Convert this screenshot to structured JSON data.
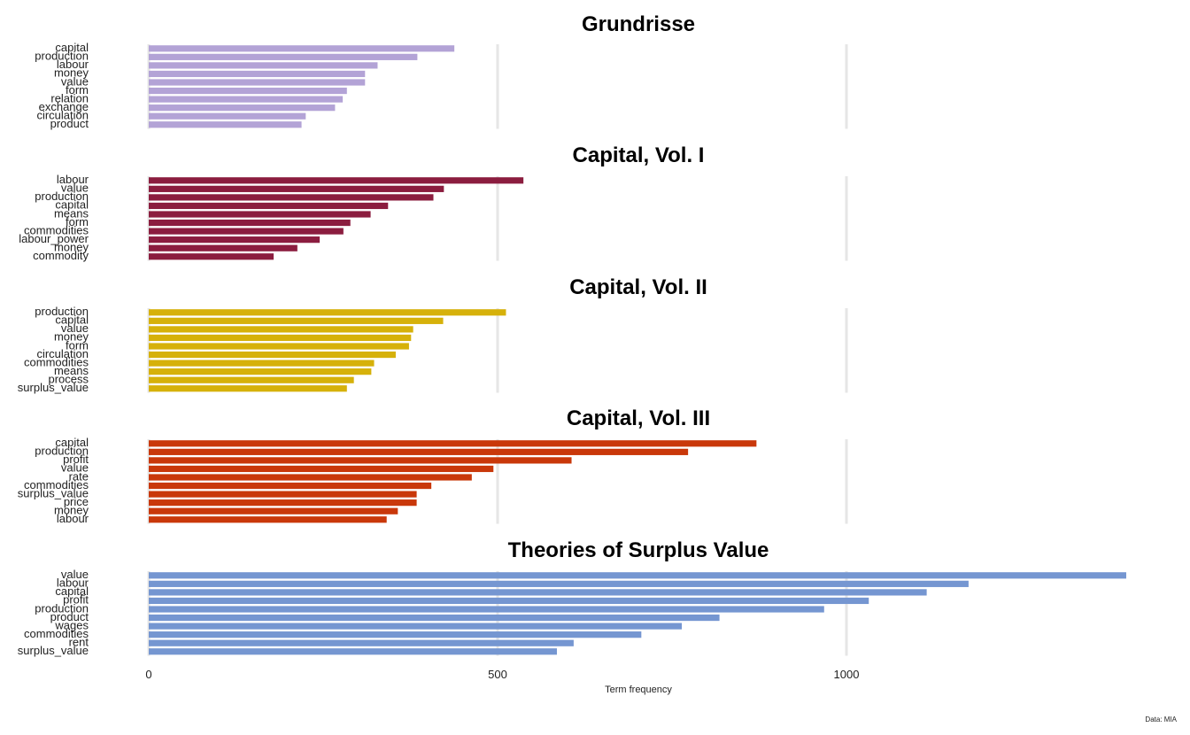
{
  "chart_data": {
    "type": "bar",
    "orientation": "horizontal",
    "xlabel": "Term frequency",
    "xlim": [
      0,
      1400
    ],
    "x_ticks": [
      "0",
      "500",
      "1000"
    ],
    "x_tick_values": [
      0,
      500,
      1000
    ],
    "grid": true,
    "caption": "Data: MIA",
    "panels": [
      {
        "title": "Grundrisse",
        "color": "#b3a3d6",
        "categories": [
          "capital",
          "production",
          "labour",
          "money",
          "value",
          "form",
          "relation",
          "exchange",
          "circulation",
          "product"
        ],
        "values": [
          438,
          385,
          328,
          310,
          310,
          284,
          278,
          267,
          225,
          219
        ]
      },
      {
        "title": "Capital, Vol. I",
        "color": "#8b1d3f",
        "categories": [
          "labour",
          "value",
          "production",
          "capital",
          "means",
          "form",
          "commodities",
          "labour_power",
          "money",
          "commodity"
        ],
        "values": [
          537,
          423,
          408,
          343,
          318,
          289,
          279,
          245,
          213,
          179
        ]
      },
      {
        "title": "Capital, Vol. II",
        "color": "#d6b10a",
        "categories": [
          "production",
          "capital",
          "value",
          "money",
          "form",
          "circulation",
          "commodities",
          "means",
          "process",
          "surplus_value"
        ],
        "values": [
          512,
          422,
          379,
          376,
          373,
          354,
          323,
          319,
          294,
          284
        ]
      },
      {
        "title": "Capital, Vol. III",
        "color": "#c9380a",
        "categories": [
          "capital",
          "production",
          "profit",
          "value",
          "rate",
          "commodities",
          "surplus_value",
          "price",
          "money",
          "labour"
        ],
        "values": [
          871,
          773,
          606,
          494,
          463,
          405,
          384,
          384,
          357,
          341
        ]
      },
      {
        "title": "Theories of Surplus Value",
        "color": "#7596d1",
        "categories": [
          "value",
          "labour",
          "capital",
          "profit",
          "production",
          "product",
          "wages",
          "commodities",
          "rent",
          "surplus_value"
        ],
        "values": [
          1401,
          1175,
          1115,
          1032,
          968,
          818,
          764,
          706,
          609,
          585
        ]
      }
    ]
  }
}
